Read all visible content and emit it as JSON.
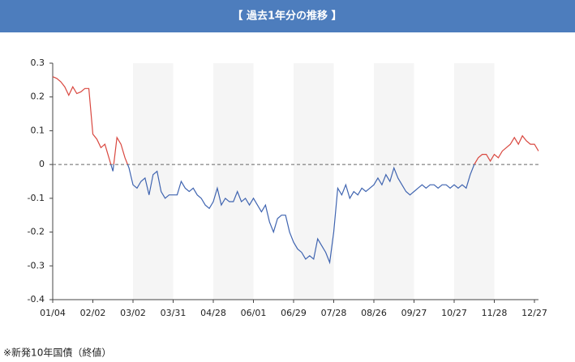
{
  "header": {
    "title": "【 過去1年分の推移 】"
  },
  "chart_data": {
    "type": "line",
    "categories": [
      "01/04",
      null,
      null,
      null,
      null,
      null,
      null,
      null,
      null,
      null,
      "02/02",
      null,
      null,
      null,
      null,
      null,
      null,
      null,
      null,
      null,
      "03/02",
      null,
      null,
      null,
      null,
      null,
      null,
      null,
      null,
      null,
      "03/31",
      null,
      null,
      null,
      null,
      null,
      null,
      null,
      null,
      null,
      "04/28",
      null,
      null,
      null,
      null,
      null,
      null,
      null,
      null,
      null,
      "06/01",
      null,
      null,
      null,
      null,
      null,
      null,
      null,
      null,
      null,
      "06/29",
      null,
      null,
      null,
      null,
      null,
      null,
      null,
      null,
      null,
      "07/28",
      null,
      null,
      null,
      null,
      null,
      null,
      null,
      null,
      null,
      "08/26",
      null,
      null,
      null,
      null,
      null,
      null,
      null,
      null,
      null,
      "09/27",
      null,
      null,
      null,
      null,
      null,
      null,
      null,
      null,
      null,
      "10/27",
      null,
      null,
      null,
      null,
      null,
      null,
      null,
      null,
      null,
      "11/28",
      null,
      null,
      null,
      null,
      null,
      null,
      null,
      null,
      null,
      "12/27",
      null
    ],
    "values": [
      0.26,
      0.255,
      0.245,
      0.23,
      0.205,
      0.23,
      0.21,
      0.215,
      0.225,
      0.225,
      0.09,
      0.075,
      0.05,
      0.06,
      0.02,
      -0.02,
      0.08,
      0.06,
      0.02,
      -0.01,
      -0.06,
      -0.07,
      -0.05,
      -0.04,
      -0.09,
      -0.03,
      -0.02,
      -0.08,
      -0.1,
      -0.09,
      -0.09,
      -0.09,
      -0.05,
      -0.07,
      -0.08,
      -0.07,
      -0.09,
      -0.1,
      -0.12,
      -0.13,
      -0.11,
      -0.07,
      -0.12,
      -0.1,
      -0.11,
      -0.11,
      -0.08,
      -0.11,
      -0.1,
      -0.12,
      -0.1,
      -0.12,
      -0.14,
      -0.12,
      -0.17,
      -0.2,
      -0.16,
      -0.15,
      -0.15,
      -0.2,
      -0.23,
      -0.25,
      -0.26,
      -0.28,
      -0.27,
      -0.28,
      -0.22,
      -0.24,
      -0.26,
      -0.29,
      -0.2,
      -0.07,
      -0.09,
      -0.06,
      -0.1,
      -0.08,
      -0.09,
      -0.07,
      -0.08,
      -0.07,
      -0.06,
      -0.04,
      -0.06,
      -0.03,
      -0.05,
      -0.01,
      -0.04,
      -0.06,
      -0.08,
      -0.09,
      -0.08,
      -0.07,
      -0.06,
      -0.07,
      -0.06,
      -0.06,
      -0.07,
      -0.06,
      -0.06,
      -0.07,
      -0.06,
      -0.07,
      -0.06,
      -0.07,
      -0.03,
      0.0,
      0.02,
      0.03,
      0.03,
      0.01,
      0.03,
      0.02,
      0.04,
      0.05,
      0.06,
      0.08,
      0.06,
      0.085,
      0.07,
      0.06,
      0.06,
      0.04
    ],
    "color_above": "#d9473f",
    "color_below": "#3f64b0",
    "ylim": [
      -0.4,
      0.3
    ],
    "yticks": [
      0.3,
      0.2,
      0.1,
      0,
      -0.1,
      -0.2,
      -0.3,
      -0.4
    ]
  },
  "footer": {
    "note": "※新発10年国債（終値）"
  }
}
